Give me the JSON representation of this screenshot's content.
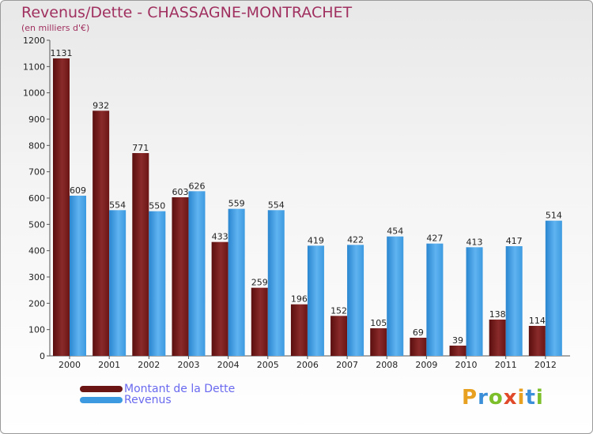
{
  "title": "Revenus/Dette - CHASSAGNE-MONTRACHET",
  "subtitle": "(en milliers d'€)",
  "legend": {
    "dette": "Montant de la Dette",
    "revenus": "Revenus"
  },
  "logo": {
    "letters": [
      "P",
      "r",
      "o",
      "x",
      "i",
      "t",
      "i"
    ],
    "colors": [
      "#e8a020",
      "#3b8fd8",
      "#7cbf2a",
      "#e04a2a",
      "#e8a020",
      "#3b8fd8",
      "#7cbf2a"
    ]
  },
  "colors": {
    "dette": "#6b1515",
    "revenus": "#3d9ae0"
  },
  "chart_data": {
    "type": "bar",
    "categories": [
      "2000",
      "2001",
      "2002",
      "2003",
      "2004",
      "2005",
      "2006",
      "2007",
      "2008",
      "2009",
      "2010",
      "2011",
      "2012"
    ],
    "series": [
      {
        "name": "Montant de la Dette",
        "values": [
          1131,
          932,
          771,
          603,
          433,
          259,
          196,
          152,
          105,
          69,
          39,
          138,
          114
        ]
      },
      {
        "name": "Revenus",
        "values": [
          609,
          554,
          550,
          626,
          559,
          554,
          419,
          422,
          454,
          427,
          413,
          417,
          514
        ]
      }
    ],
    "yticks": [
      0,
      100,
      200,
      300,
      400,
      500,
      600,
      700,
      800,
      900,
      1000,
      1100,
      1200
    ],
    "ylim": [
      0,
      1200
    ],
    "grid": false,
    "legend_position": "bottom-left"
  }
}
